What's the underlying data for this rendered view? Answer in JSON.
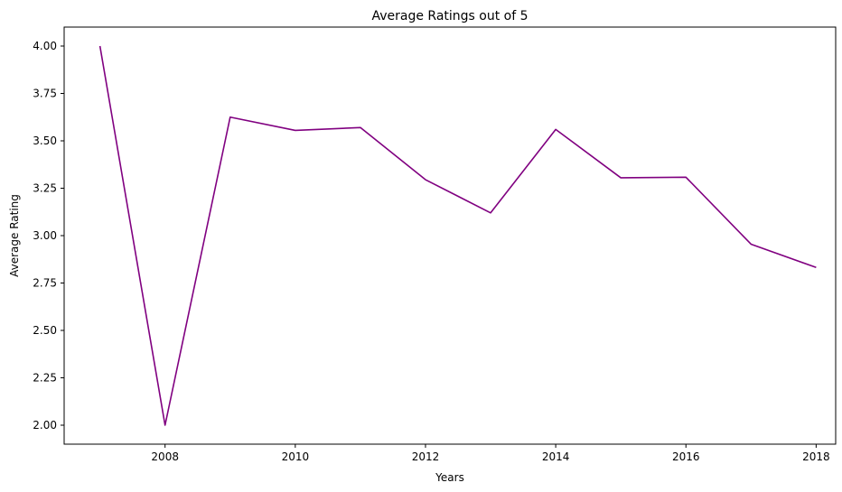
{
  "chart_data": {
    "type": "line",
    "title": "Average Ratings out of 5",
    "xlabel": "Years",
    "ylabel": "Average Rating",
    "xlim": [
      2006.45,
      2018.3
    ],
    "ylim": [
      1.9,
      4.1
    ],
    "xticks": [
      2008,
      2010,
      2012,
      2014,
      2016,
      2018
    ],
    "xtick_labels": [
      "2008",
      "2010",
      "2012",
      "2014",
      "2016",
      "2018"
    ],
    "yticks": [
      2.0,
      2.25,
      2.5,
      2.75,
      3.0,
      3.25,
      3.5,
      3.75,
      4.0
    ],
    "ytick_labels": [
      "2.00",
      "2.25",
      "2.50",
      "2.75",
      "3.00",
      "3.25",
      "3.50",
      "3.75",
      "4.00"
    ],
    "grid": false,
    "series": [
      {
        "color": "#800080",
        "x": [
          2007,
          2008,
          2009,
          2010,
          2011,
          2012,
          2013,
          2014,
          2015,
          2016,
          2017,
          2018
        ],
        "y": [
          4.0,
          2.0,
          3.625,
          3.555,
          3.57,
          3.295,
          3.12,
          3.56,
          3.305,
          3.308,
          2.955,
          2.832
        ]
      }
    ]
  }
}
